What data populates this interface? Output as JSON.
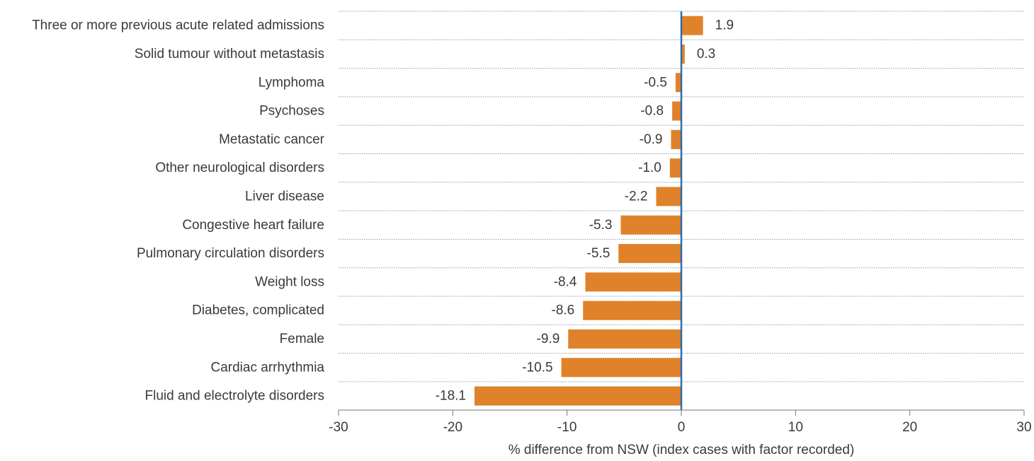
{
  "chart_data": {
    "type": "bar",
    "orientation": "horizontal",
    "categories": [
      "Three or more previous acute related admissions",
      "Solid tumour without metastasis",
      "Lymphoma",
      "Psychoses",
      "Metastatic cancer",
      "Other neurological disorders",
      "Liver disease",
      "Congestive heart failure ",
      "Pulmonary circulation disorders",
      "Weight loss",
      "Diabetes, complicated",
      "Female",
      "Cardiac arrhythmia",
      "Fluid and electrolyte disorders"
    ],
    "values": [
      1.9,
      0.3,
      -0.5,
      -0.8,
      -0.9,
      -1.0,
      -2.2,
      -5.3,
      -5.5,
      -8.4,
      -8.6,
      -9.9,
      -10.5,
      -18.1
    ],
    "value_labels": [
      "1.9",
      "0.3",
      "-0.5",
      "-0.8",
      "-0.9",
      "-1.0",
      "-2.2",
      "-5.3",
      "-5.5",
      "-8.4",
      "-8.6",
      "-9.9",
      "-10.5",
      "-18.1"
    ],
    "xlabel": "% difference from NSW (index cases with factor recorded)",
    "ylabel": "",
    "title": "",
    "xlim": [
      -30,
      30
    ],
    "xticks": [
      -30,
      -20,
      -10,
      0,
      10,
      20,
      30
    ],
    "grid": "horizontal dotted separators between categories",
    "legend": "none",
    "colors": {
      "bar": "#e0822a",
      "zero_line": "#2f6aa6",
      "grid": "#9a9a9a",
      "axis": "#777777",
      "text": "#3a3a3a"
    }
  }
}
